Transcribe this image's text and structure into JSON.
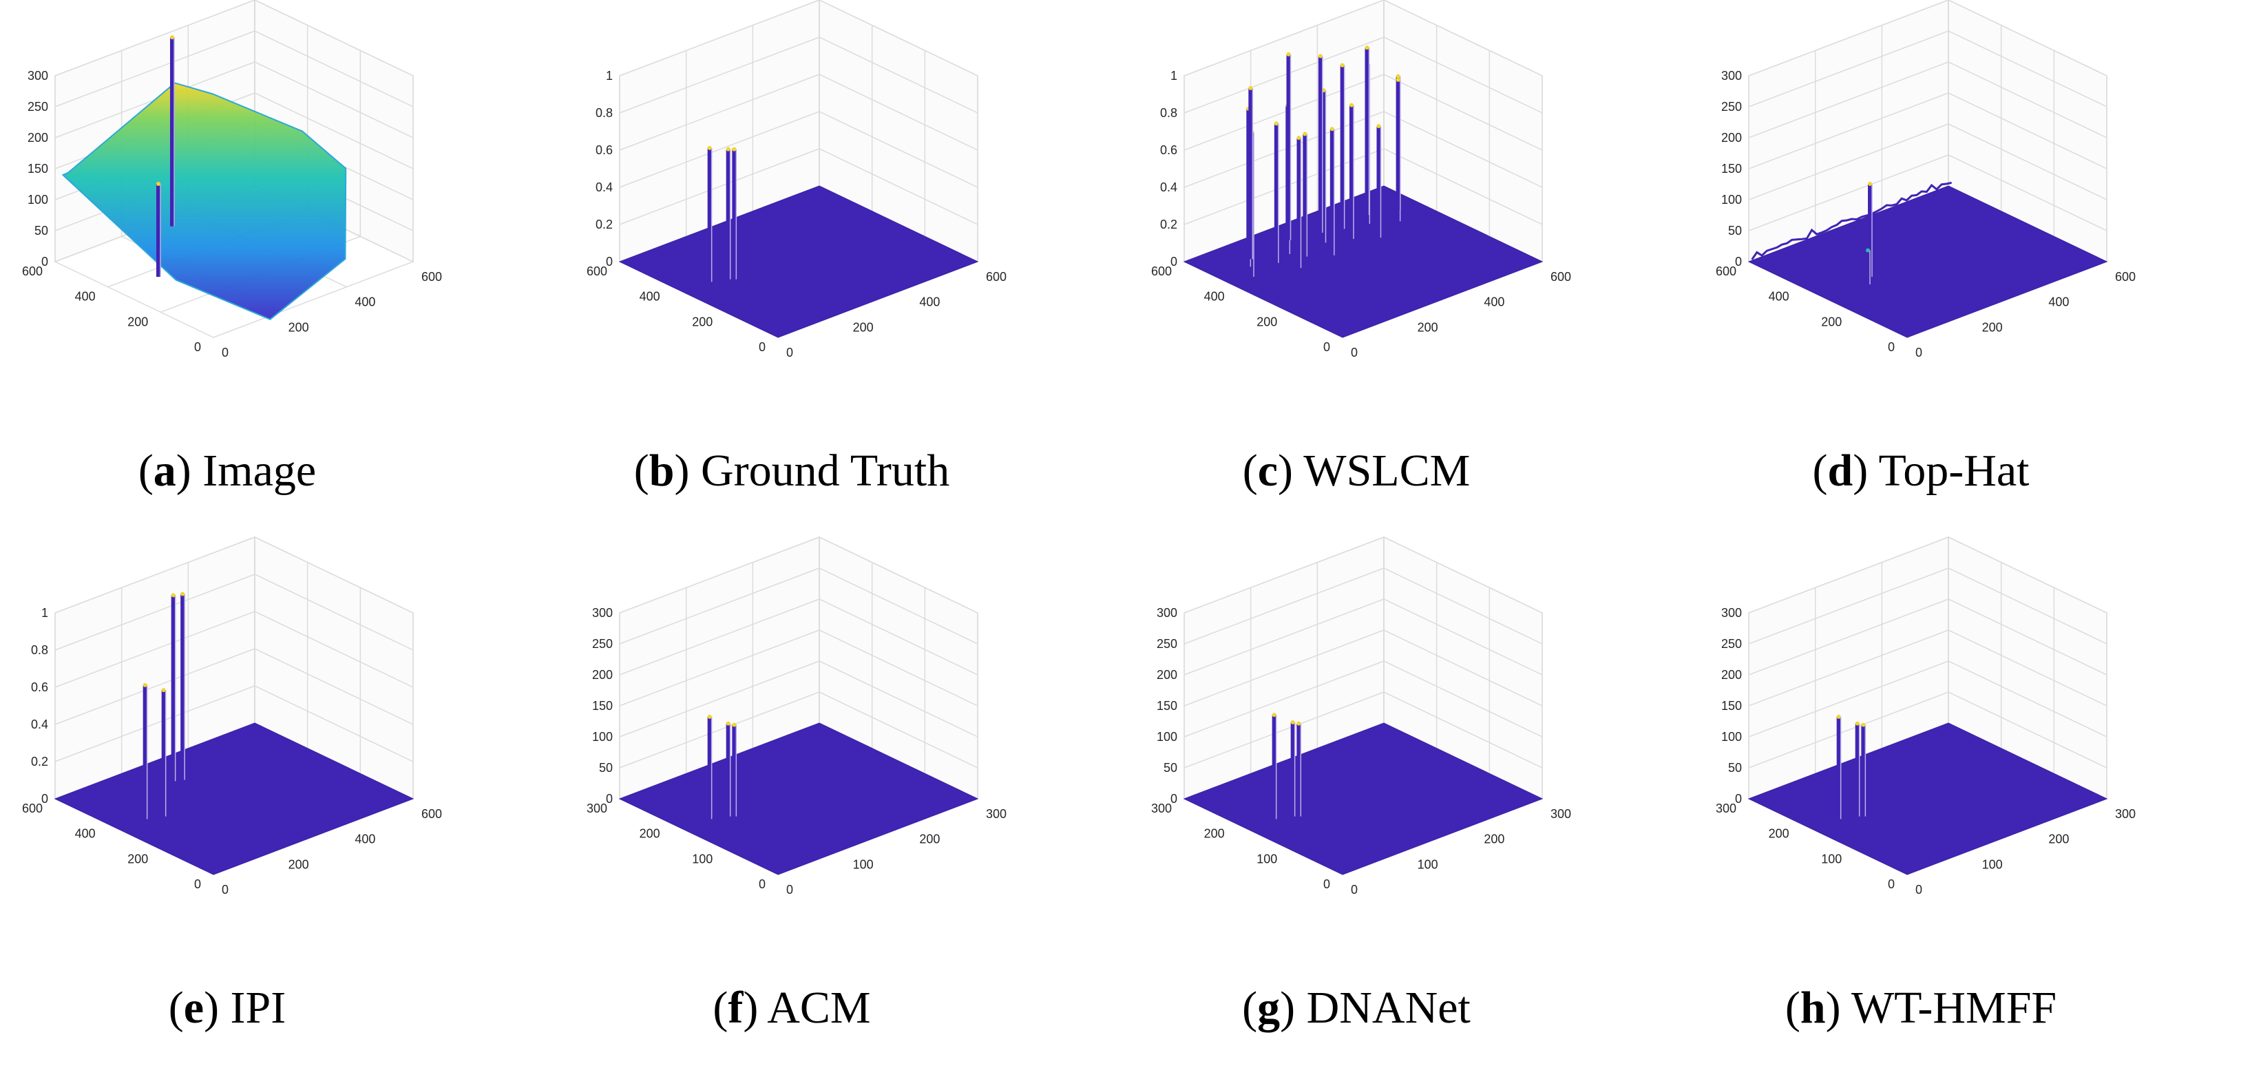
{
  "chart_data": [
    {
      "type": "surface3d",
      "caption": {
        "letter": "a",
        "name": "Image"
      },
      "zticks": [
        "0",
        "50",
        "100",
        "150",
        "200",
        "250",
        "300"
      ],
      "zlim": [
        0,
        300
      ],
      "yticks": [
        "0",
        "200",
        "400",
        "600"
      ],
      "xticks": [
        "0",
        "200",
        "400",
        "600"
      ],
      "xlim": [
        0,
        600
      ],
      "ylim": [
        0,
        600
      ],
      "surface": {
        "kind": "background",
        "plane_level": 110
      },
      "spikes": [
        {
          "x": 320,
          "y": 560,
          "z": 305
        },
        {
          "x": 120,
          "y": 360,
          "z": 150
        }
      ]
    },
    {
      "type": "surface3d",
      "caption": {
        "letter": "b",
        "name": "Ground Truth"
      },
      "zticks": [
        "0",
        "0.2",
        "0.4",
        "0.6",
        "0.8",
        "1"
      ],
      "zlim": [
        0,
        1
      ],
      "yticks": [
        "0",
        "200",
        "400",
        "600"
      ],
      "xticks": [
        "0",
        "200",
        "400",
        "600"
      ],
      "xlim": [
        0,
        600
      ],
      "ylim": [
        0,
        600
      ],
      "surface": {
        "kind": "flat"
      },
      "spikes": [
        {
          "x": 80,
          "y": 360,
          "z": 0.72
        },
        {
          "x": 120,
          "y": 340,
          "z": 0.7
        },
        {
          "x": 130,
          "y": 330,
          "z": 0.7
        }
      ]
    },
    {
      "type": "surface3d",
      "caption": {
        "letter": "c",
        "name": "WSLCM"
      },
      "zticks": [
        "0",
        "0.2",
        "0.4",
        "0.6",
        "0.8",
        "1"
      ],
      "zlim": [
        0,
        1
      ],
      "yticks": [
        "0",
        "200",
        "400",
        "600"
      ],
      "xticks": [
        "0",
        "200",
        "400",
        "600"
      ],
      "xlim": [
        0,
        600
      ],
      "ylim": [
        0,
        600
      ],
      "surface": {
        "kind": "flat"
      },
      "spikes": [
        {
          "x": 60,
          "y": 420,
          "z": 0.78
        },
        {
          "x": 90,
          "y": 470,
          "z": 0.85
        },
        {
          "x": 120,
          "y": 500,
          "z": 0.92
        },
        {
          "x": 150,
          "y": 440,
          "z": 0.75
        },
        {
          "x": 170,
          "y": 380,
          "z": 0.7
        },
        {
          "x": 200,
          "y": 460,
          "z": 0.8
        },
        {
          "x": 220,
          "y": 420,
          "z": 0.66
        },
        {
          "x": 250,
          "y": 520,
          "z": 1.0
        },
        {
          "x": 270,
          "y": 380,
          "z": 0.68
        },
        {
          "x": 300,
          "y": 450,
          "z": 0.82
        },
        {
          "x": 330,
          "y": 500,
          "z": 0.95
        },
        {
          "x": 360,
          "y": 420,
          "z": 0.72
        },
        {
          "x": 380,
          "y": 480,
          "z": 0.88
        },
        {
          "x": 410,
          "y": 380,
          "z": 0.6
        },
        {
          "x": 440,
          "y": 460,
          "z": 0.86
        },
        {
          "x": 470,
          "y": 500,
          "z": 0.9
        },
        {
          "x": 500,
          "y": 420,
          "z": 0.78
        },
        {
          "x": 540,
          "y": 470,
          "z": 0.7
        }
      ]
    },
    {
      "type": "surface3d",
      "caption": {
        "letter": "d",
        "name": "Top-Hat"
      },
      "zticks": [
        "0",
        "50",
        "100",
        "150",
        "200",
        "250",
        "300"
      ],
      "zlim": [
        0,
        300
      ],
      "yticks": [
        "0",
        "200",
        "400",
        "600"
      ],
      "xticks": [
        "0",
        "200",
        "400",
        "600"
      ],
      "xlim": [
        0,
        600
      ],
      "ylim": [
        0,
        600
      ],
      "surface": {
        "kind": "noisy"
      },
      "spikes": [
        {
          "x": 150,
          "y": 330,
          "z": 150
        },
        {
          "x": 120,
          "y": 300,
          "z": 55
        }
      ]
    },
    {
      "type": "surface3d",
      "caption": {
        "letter": "e",
        "name": "IPI"
      },
      "zticks": [
        "0",
        "0.2",
        "0.4",
        "0.6",
        "0.8",
        "1"
      ],
      "zlim": [
        0,
        1
      ],
      "yticks": [
        "0",
        "200",
        "400",
        "600"
      ],
      "xticks": [
        "0",
        "200",
        "400",
        "600"
      ],
      "xlim": [
        0,
        600
      ],
      "ylim": [
        0,
        600
      ],
      "surface": {
        "kind": "flat"
      },
      "spikes": [
        {
          "x": 80,
          "y": 360,
          "z": 0.72
        },
        {
          "x": 120,
          "y": 340,
          "z": 0.68
        },
        {
          "x": 260,
          "y": 480,
          "z": 1.0
        },
        {
          "x": 280,
          "y": 470,
          "z": 1.0
        }
      ]
    },
    {
      "type": "surface3d",
      "caption": {
        "letter": "f",
        "name": "ACM"
      },
      "zticks": [
        "0",
        "50",
        "100",
        "150",
        "200",
        "250",
        "300"
      ],
      "zlim": [
        0,
        300
      ],
      "yticks": [
        "0",
        "100",
        "200",
        "300"
      ],
      "xticks": [
        "0",
        "100",
        "200",
        "300"
      ],
      "xlim": [
        0,
        300
      ],
      "ylim": [
        0,
        300
      ],
      "surface": {
        "kind": "flat"
      },
      "spikes": [
        {
          "x": 40,
          "y": 180,
          "z": 165
        },
        {
          "x": 60,
          "y": 170,
          "z": 150
        },
        {
          "x": 65,
          "y": 165,
          "z": 148
        }
      ]
    },
    {
      "type": "surface3d",
      "caption": {
        "letter": "g",
        "name": "DNANet"
      },
      "zticks": [
        "0",
        "50",
        "100",
        "150",
        "200",
        "250",
        "300"
      ],
      "zlim": [
        0,
        300
      ],
      "yticks": [
        "0",
        "100",
        "200",
        "300"
      ],
      "xticks": [
        "0",
        "100",
        "200",
        "300"
      ],
      "xlim": [
        0,
        300
      ],
      "ylim": [
        0,
        300
      ],
      "surface": {
        "kind": "flat"
      },
      "spikes": [
        {
          "x": 40,
          "y": 180,
          "z": 168
        },
        {
          "x": 60,
          "y": 170,
          "z": 152
        },
        {
          "x": 65,
          "y": 165,
          "z": 150
        }
      ]
    },
    {
      "type": "surface3d",
      "caption": {
        "letter": "h",
        "name": "WT-HMFF"
      },
      "zticks": [
        "0",
        "50",
        "100",
        "150",
        "200",
        "250",
        "300"
      ],
      "zlim": [
        0,
        300
      ],
      "yticks": [
        "0",
        "100",
        "200",
        "300"
      ],
      "xticks": [
        "0",
        "100",
        "200",
        "300"
      ],
      "xlim": [
        0,
        300
      ],
      "ylim": [
        0,
        300
      ],
      "surface": {
        "kind": "flat"
      },
      "spikes": [
        {
          "x": 40,
          "y": 180,
          "z": 165
        },
        {
          "x": 60,
          "y": 170,
          "z": 150
        },
        {
          "x": 65,
          "y": 165,
          "z": 148
        }
      ]
    }
  ],
  "colors": {
    "surface": "#4024b4",
    "surface_edge": "#3a1fa8",
    "grid": "#dcdcdc",
    "axis": "#262626",
    "peak": "#f2d52a",
    "mid": "#2ab7b0"
  }
}
